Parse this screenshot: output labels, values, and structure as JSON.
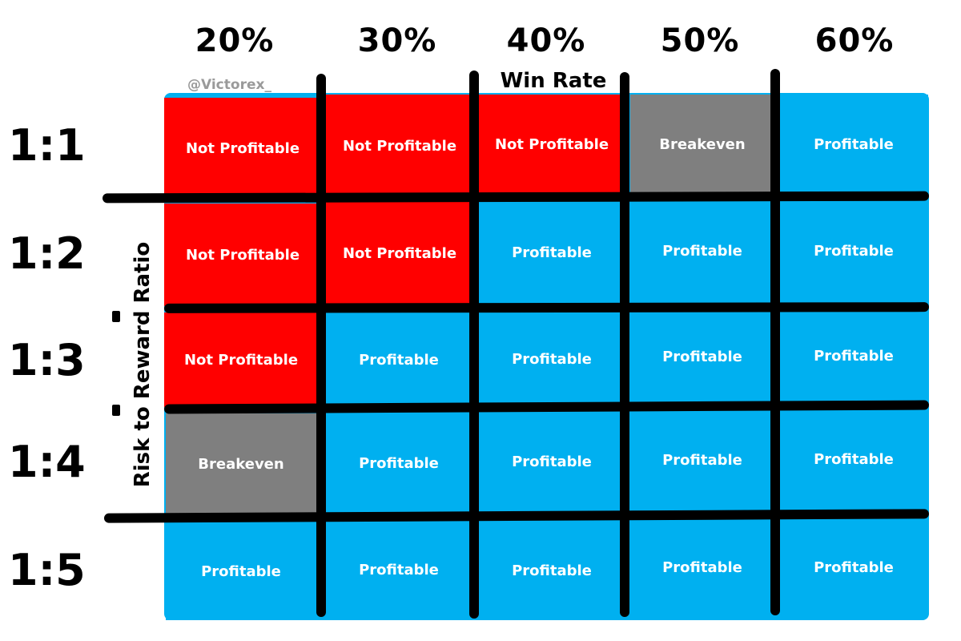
{
  "watermark": "@Victorex_",
  "axis_x_label": "Win Rate",
  "axis_y_label": "Risk to Reward Ratio",
  "win_rates": [
    "20%",
    "30%",
    "40%",
    "50%",
    "60%"
  ],
  "ratios": [
    "1:1",
    "1:2",
    "1:3",
    "1:4",
    "1:5"
  ],
  "grid": [
    [
      "Not Profitable",
      "Not Profitable",
      "Not Profitable",
      "Breakeven",
      "Profitable"
    ],
    [
      "Not Profitable",
      "Not Profitable",
      "Profitable",
      "Profitable",
      "Profitable"
    ],
    [
      "Not Profitable",
      "Profitable",
      "Profitable",
      "Profitable",
      "Profitable"
    ],
    [
      "Breakeven",
      "Profitable",
      "Profitable",
      "Profitable",
      "Profitable"
    ],
    [
      "Profitable",
      "Profitable",
      "Profitable",
      "Profitable",
      "Profitable"
    ]
  ],
  "colors": {
    "not_profitable": "#ff0000",
    "breakeven": "#7f7f7f",
    "profitable": "#00b0f0"
  }
}
